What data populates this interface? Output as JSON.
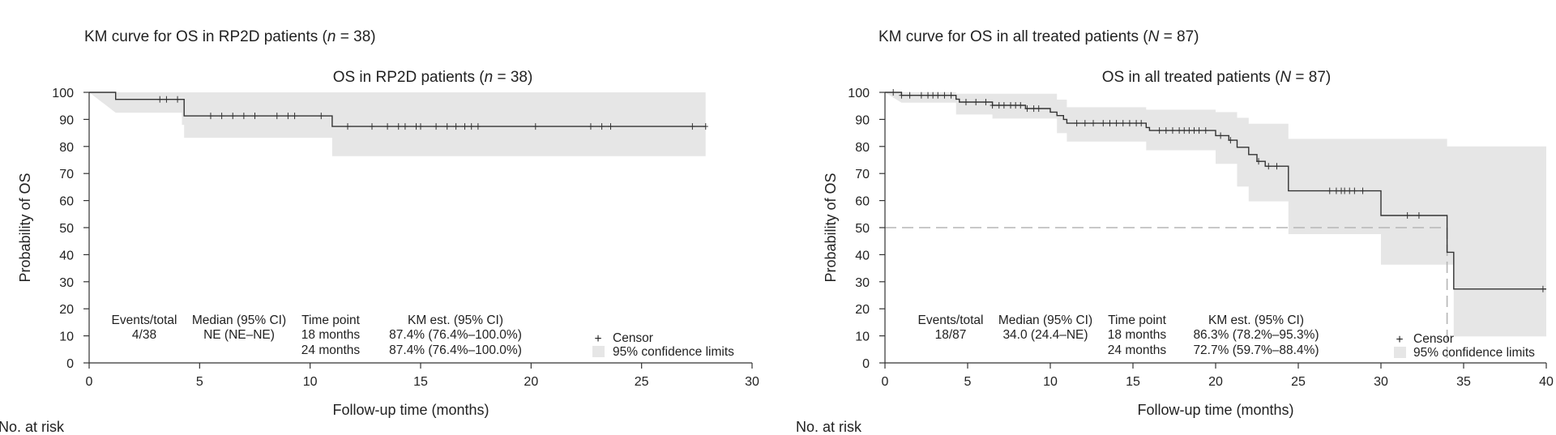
{
  "panels": [
    {
      "figure_title": "KM curve for OS in RP2D patients (",
      "figure_title_n_symbol": "n",
      "figure_title_n_rest": " = 38)",
      "no_at_risk_label": "No. at risk",
      "stats_table": {
        "headers": [
          "Events/total",
          "Median (95% CI)",
          "Time point",
          "KM est. (95% CI)"
        ],
        "events_total": "4/38",
        "median": "NE (NE–NE)",
        "rows": [
          {
            "time_point": "18 months",
            "km_est": "87.4% (76.4%–100.0%)"
          },
          {
            "time_point": "24 months",
            "km_est": "87.4% (76.4%–100.0%)"
          }
        ]
      },
      "legend": {
        "censor_symbol": "+",
        "censor_label": "Censor",
        "ci_label": "95% confidence limits"
      }
    },
    {
      "figure_title": "KM curve for OS in all treated patients (",
      "figure_title_n_symbol": "N",
      "figure_title_n_rest": " = 87)",
      "no_at_risk_label": "No. at risk",
      "stats_table": {
        "headers": [
          "Events/total",
          "Median (95% CI)",
          "Time point",
          "KM est. (95% CI)"
        ],
        "events_total": "18/87",
        "median": "34.0 (24.4–NE)",
        "rows": [
          {
            "time_point": "18 months",
            "km_est": "86.3% (78.2%–95.3%)"
          },
          {
            "time_point": "24 months",
            "km_est": "72.7% (59.7%–88.4%)"
          }
        ]
      },
      "legend": {
        "censor_symbol": "+",
        "censor_label": "Censor",
        "ci_label": "95% confidence limits"
      }
    }
  ],
  "chart_data": [
    {
      "type": "line",
      "title": "OS in RP2D patients (",
      "title_n_symbol": "n",
      "title_n_rest": " = 38)",
      "xlabel": "Follow-up time (months)",
      "ylabel": "Probability of OS",
      "xlim": [
        0,
        30
      ],
      "ylim": [
        0,
        100
      ],
      "xticks": [
        0,
        5,
        10,
        15,
        20,
        25,
        30
      ],
      "yticks": [
        0,
        10,
        20,
        30,
        40,
        50,
        60,
        70,
        80,
        90,
        100
      ],
      "grid": false,
      "colors": {
        "curve": "#333333",
        "ci_band": "#e6e6e6"
      },
      "series": [
        {
          "kind": "km_step",
          "steps": [
            [
              0,
              100
            ],
            [
              1.2,
              97.4
            ],
            [
              4.3,
              91.3
            ],
            [
              11.0,
              87.4
            ],
            [
              27.9,
              87.4
            ]
          ],
          "censors": [
            3.2,
            3.5,
            4.0,
            5.5,
            6.0,
            6.5,
            7.0,
            7.5,
            8.5,
            9.0,
            9.3,
            10.5,
            11.7,
            12.8,
            13.5,
            14.0,
            14.3,
            14.8,
            15.0,
            15.7,
            16.2,
            16.6,
            17.0,
            17.3,
            17.6,
            20.2,
            22.7,
            23.2,
            23.6,
            27.3,
            27.9
          ]
        },
        {
          "kind": "ci_band",
          "upper": [
            [
              0,
              100
            ],
            [
              27.9,
              100
            ]
          ],
          "lower": [
            [
              0,
              100
            ],
            [
              1.2,
              92.5
            ],
            [
              4.2,
              92.5
            ],
            [
              4.2,
              88
            ],
            [
              4.3,
              88
            ],
            [
              4.3,
              83.2
            ],
            [
              11.0,
              83.2
            ],
            [
              11.0,
              76.4
            ],
            [
              27.9,
              76.4
            ]
          ]
        }
      ]
    },
    {
      "type": "line",
      "title": "OS in all treated patients (",
      "title_n_symbol": "N",
      "title_n_rest": " = 87)",
      "xlabel": "Follow-up time (months)",
      "ylabel": "Probability of OS",
      "xlim": [
        0,
        40
      ],
      "ylim": [
        0,
        100
      ],
      "xticks": [
        0,
        5,
        10,
        15,
        20,
        25,
        30,
        35,
        40
      ],
      "yticks": [
        0,
        10,
        20,
        30,
        40,
        50,
        60,
        70,
        80,
        90,
        100
      ],
      "grid": false,
      "median_reference": {
        "y": 50,
        "x": 34.0
      },
      "colors": {
        "curve": "#333333",
        "ci_band": "#e6e6e6",
        "reference_line": "#b5b5b5"
      },
      "series": [
        {
          "kind": "km_step",
          "steps": [
            [
              0,
              100
            ],
            [
              1.0,
              98.9
            ],
            [
              4.3,
              97.5
            ],
            [
              4.5,
              96.4
            ],
            [
              6.5,
              95.2
            ],
            [
              8.5,
              94.0
            ],
            [
              10.0,
              92.7
            ],
            [
              10.4,
              91.4
            ],
            [
              10.8,
              90.0
            ],
            [
              11.0,
              88.6
            ],
            [
              15.8,
              87.0
            ],
            [
              16.0,
              85.9
            ],
            [
              20.0,
              84.0
            ],
            [
              20.8,
              82.3
            ],
            [
              21.3,
              79.7
            ],
            [
              22.0,
              77.0
            ],
            [
              22.5,
              74.5
            ],
            [
              23.0,
              72.7
            ],
            [
              24.4,
              63.6
            ],
            [
              30.0,
              54.5
            ],
            [
              34.0,
              40.9
            ],
            [
              34.4,
              27.3
            ],
            [
              40.0,
              27.3
            ]
          ],
          "censors": [
            0.5,
            1.0,
            1.5,
            2.2,
            2.6,
            2.9,
            3.2,
            3.6,
            4.0,
            4.9,
            5.5,
            6.1,
            6.5,
            6.9,
            7.2,
            7.6,
            7.9,
            8.2,
            8.6,
            9.0,
            9.3,
            11.6,
            12.1,
            12.6,
            13.2,
            13.6,
            14.0,
            14.4,
            14.8,
            15.2,
            15.5,
            16.6,
            17.0,
            17.4,
            17.8,
            18.1,
            18.4,
            18.7,
            19.0,
            19.4,
            20.3,
            20.9,
            22.6,
            23.2,
            23.7,
            26.9,
            27.3,
            27.6,
            27.8,
            28.1,
            28.4,
            28.9,
            31.6,
            32.3,
            39.8
          ]
        },
        {
          "kind": "ci_band",
          "upper": [
            [
              0,
              100
            ],
            [
              4.3,
              100
            ],
            [
              4.3,
              99.5
            ],
            [
              10.4,
              99.5
            ],
            [
              10.4,
              97.3
            ],
            [
              11.0,
              97.3
            ],
            [
              11.0,
              94.5
            ],
            [
              15.8,
              94.5
            ],
            [
              15.8,
              93.6
            ],
            [
              20.0,
              93.6
            ],
            [
              20.0,
              92.7
            ],
            [
              21.3,
              92.7
            ],
            [
              21.3,
              90.6
            ],
            [
              22.0,
              90.6
            ],
            [
              22.0,
              88.4
            ],
            [
              24.4,
              88.4
            ],
            [
              24.4,
              82.8
            ],
            [
              34.0,
              82.8
            ],
            [
              34.0,
              80.0
            ],
            [
              40.0,
              80.0
            ]
          ],
          "lower": [
            [
              0,
              100
            ],
            [
              1.0,
              96.2
            ],
            [
              4.3,
              96.2
            ],
            [
              4.3,
              91.8
            ],
            [
              6.5,
              91.8
            ],
            [
              6.5,
              90.3
            ],
            [
              10.4,
              90.3
            ],
            [
              10.4,
              84.9
            ],
            [
              11.0,
              84.9
            ],
            [
              11.0,
              81.8
            ],
            [
              15.8,
              81.8
            ],
            [
              15.8,
              78.6
            ],
            [
              20.0,
              78.6
            ],
            [
              20.0,
              73.6
            ],
            [
              21.3,
              73.6
            ],
            [
              21.3,
              65.2
            ],
            [
              22.0,
              65.2
            ],
            [
              22.0,
              59.7
            ],
            [
              24.4,
              59.7
            ],
            [
              24.4,
              47.6
            ],
            [
              30.0,
              47.6
            ],
            [
              30.0,
              36.3
            ],
            [
              34.4,
              36.3
            ],
            [
              34.4,
              9.8
            ],
            [
              40.0,
              9.8
            ]
          ]
        }
      ]
    }
  ]
}
